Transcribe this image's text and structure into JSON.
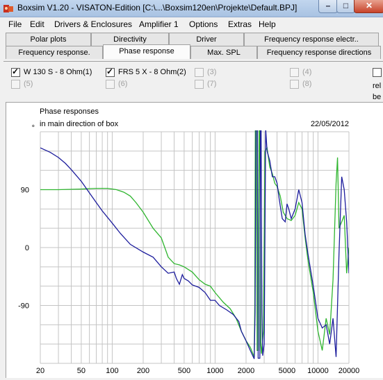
{
  "window": {
    "title": "Boxsim V1.20 - VISATON-Edition [C:\\...\\Boxsim120en\\Projekte\\Default.BPJ]",
    "min_glyph": "–",
    "max_glyph": "□",
    "close_glyph": "✕"
  },
  "menu": [
    "File",
    "Edit",
    "Drivers & Enclosures",
    "Amplifier 1",
    "Options",
    "Extras",
    "Help"
  ],
  "tabs_top": [
    "Polar plots",
    "Directivity",
    "Driver",
    "Frequency response electr.."
  ],
  "tabs_bottom": [
    "Frequency response.",
    "Phase response",
    "Max. SPL",
    "Frequency response directions"
  ],
  "active_tab": "Phase response",
  "drivers": [
    {
      "label": "W 130 S - 8 Ohm(1)",
      "checked": true,
      "enabled": true
    },
    {
      "label": "FRS 5 X - 8 Ohm(2)",
      "checked": true,
      "enabled": true
    },
    {
      "label": "(3)",
      "checked": false,
      "enabled": false
    },
    {
      "label": "(4)",
      "checked": false,
      "enabled": false
    },
    {
      "label": "(5)",
      "checked": false,
      "enabled": false
    },
    {
      "label": "(6)",
      "checked": false,
      "enabled": false
    },
    {
      "label": "(7)",
      "checked": false,
      "enabled": false
    },
    {
      "label": "(8)",
      "checked": false,
      "enabled": false
    }
  ],
  "side_text": {
    "line1": "rel",
    "line2": "be"
  },
  "chart_data": {
    "type": "line",
    "title": "Phase responses",
    "subtitle": "in main direction of box",
    "date": "22/05/2012",
    "x_scale": "log",
    "xlim": [
      20,
      20000
    ],
    "ylim": [
      -180,
      180
    ],
    "y_ticks": [
      "90",
      "0",
      "-90"
    ],
    "y_top_label": "°",
    "x_ticks": [
      "20",
      "50",
      "100",
      "200",
      "500",
      "1000",
      "2000",
      "5000",
      "10000",
      "20000"
    ],
    "grid": true,
    "series": [
      {
        "color": "#1c1c9c",
        "points": [
          [
            20,
            155
          ],
          [
            25,
            148
          ],
          [
            30,
            140
          ],
          [
            35,
            131
          ],
          [
            40,
            121
          ],
          [
            50,
            103
          ],
          [
            60,
            85
          ],
          [
            70,
            70
          ],
          [
            80,
            57
          ],
          [
            100,
            38
          ],
          [
            120,
            22
          ],
          [
            150,
            5
          ],
          [
            200,
            -7
          ],
          [
            250,
            -15
          ],
          [
            300,
            -30
          ],
          [
            350,
            -40
          ],
          [
            400,
            -38
          ],
          [
            420,
            -48
          ],
          [
            450,
            -57
          ],
          [
            480,
            -42
          ],
          [
            500,
            -48
          ],
          [
            550,
            -52
          ],
          [
            600,
            -58
          ],
          [
            700,
            -62
          ],
          [
            800,
            -70
          ],
          [
            900,
            -82
          ],
          [
            1000,
            -82
          ],
          [
            1100,
            -90
          ],
          [
            1300,
            -97
          ],
          [
            1500,
            -104
          ],
          [
            1700,
            -115
          ],
          [
            1800,
            -130
          ],
          [
            2000,
            -145
          ],
          [
            2200,
            -160
          ],
          [
            2400,
            -173
          ],
          [
            2450,
            -100
          ],
          [
            2500,
            185
          ],
          [
            2580,
            185
          ],
          [
            2620,
            -172
          ],
          [
            2720,
            -172
          ],
          [
            2760,
            185
          ],
          [
            2800,
            185
          ],
          [
            2850,
            -100
          ],
          [
            2900,
            -168
          ],
          [
            3000,
            -150
          ],
          [
            3100,
            185
          ],
          [
            3200,
            150
          ],
          [
            3400,
            135
          ],
          [
            3600,
            110
          ],
          [
            3800,
            110
          ],
          [
            4000,
            100
          ],
          [
            4200,
            75
          ],
          [
            4500,
            45
          ],
          [
            4800,
            40
          ],
          [
            5000,
            68
          ],
          [
            5200,
            60
          ],
          [
            5500,
            45
          ],
          [
            6000,
            60
          ],
          [
            6500,
            90
          ],
          [
            7000,
            70
          ],
          [
            7500,
            20
          ],
          [
            8000,
            -10
          ],
          [
            9000,
            -60
          ],
          [
            10000,
            -110
          ],
          [
            11000,
            -125
          ],
          [
            12000,
            -120
          ],
          [
            13000,
            -150
          ],
          [
            14000,
            -110
          ],
          [
            15000,
            -170
          ],
          [
            16000,
            -10
          ],
          [
            17000,
            110
          ],
          [
            18000,
            90
          ],
          [
            19000,
            40
          ],
          [
            20000,
            -40
          ]
        ]
      },
      {
        "color": "#2fb52f",
        "points": [
          [
            20,
            90
          ],
          [
            30,
            90
          ],
          [
            50,
            91
          ],
          [
            70,
            92
          ],
          [
            90,
            92
          ],
          [
            110,
            90
          ],
          [
            130,
            86
          ],
          [
            150,
            80
          ],
          [
            170,
            70
          ],
          [
            200,
            55
          ],
          [
            250,
            30
          ],
          [
            300,
            15
          ],
          [
            350,
            -15
          ],
          [
            400,
            -25
          ],
          [
            450,
            -27
          ],
          [
            500,
            -30
          ],
          [
            600,
            -38
          ],
          [
            700,
            -50
          ],
          [
            800,
            -57
          ],
          [
            900,
            -60
          ],
          [
            1000,
            -70
          ],
          [
            1200,
            -85
          ],
          [
            1400,
            -95
          ],
          [
            1600,
            -110
          ],
          [
            1800,
            -130
          ],
          [
            2000,
            -145
          ],
          [
            2200,
            -155
          ],
          [
            2400,
            -170
          ],
          [
            2430,
            -90
          ],
          [
            2460,
            185
          ],
          [
            2520,
            185
          ],
          [
            2560,
            -160
          ],
          [
            2640,
            -160
          ],
          [
            2680,
            185
          ],
          [
            2720,
            185
          ],
          [
            2780,
            -150
          ],
          [
            2820,
            -165
          ],
          [
            2950,
            -130
          ],
          [
            3050,
            150
          ],
          [
            3200,
            155
          ],
          [
            3400,
            125
          ],
          [
            3600,
            115
          ],
          [
            3800,
            100
          ],
          [
            4000,
            95
          ],
          [
            4300,
            80
          ],
          [
            4600,
            55
          ],
          [
            5000,
            45
          ],
          [
            5500,
            42
          ],
          [
            6000,
            50
          ],
          [
            6500,
            70
          ],
          [
            7000,
            60
          ],
          [
            7500,
            15
          ],
          [
            8000,
            -20
          ],
          [
            9000,
            -70
          ],
          [
            10000,
            -130
          ],
          [
            11000,
            -160
          ],
          [
            12000,
            -110
          ],
          [
            13000,
            -135
          ],
          [
            14000,
            -50
          ],
          [
            15000,
            100
          ],
          [
            15500,
            140
          ],
          [
            16000,
            30
          ],
          [
            17000,
            40
          ],
          [
            18000,
            50
          ],
          [
            19000,
            -40
          ],
          [
            20000,
            0
          ]
        ]
      }
    ]
  }
}
